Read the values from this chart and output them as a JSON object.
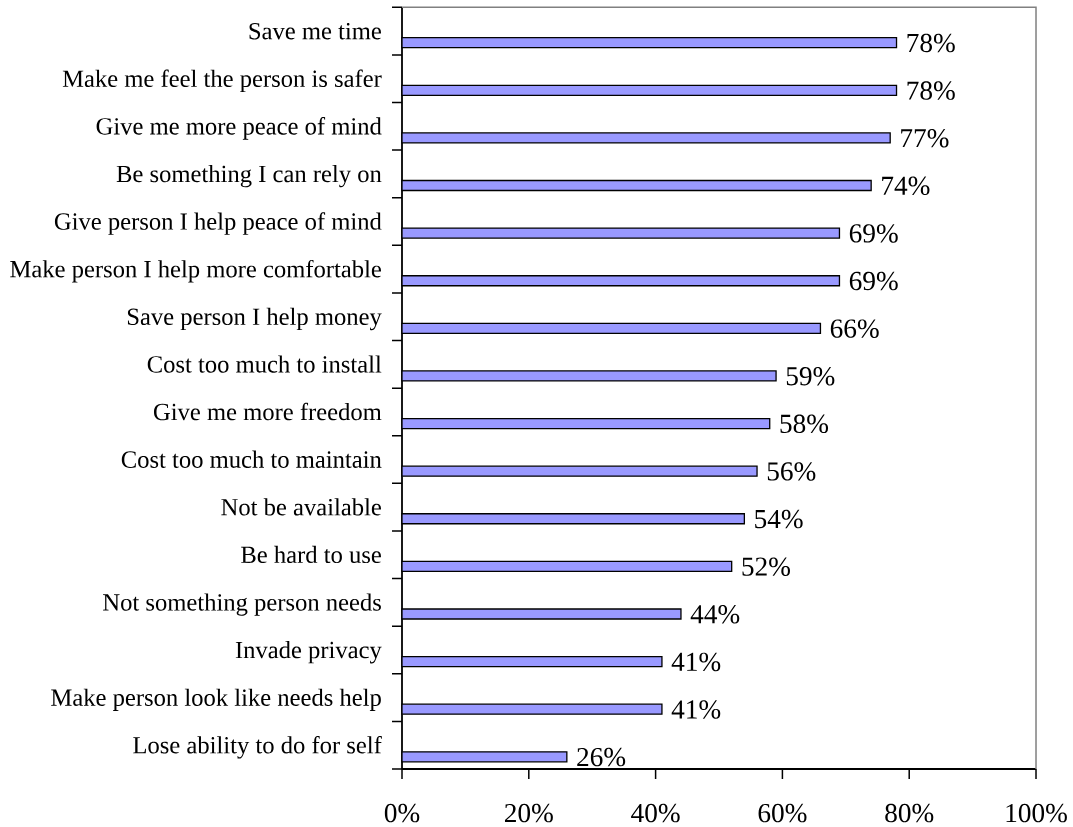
{
  "chart_data": {
    "type": "bar",
    "orientation": "horizontal",
    "categories": [
      "Save me time",
      "Make me feel the person is safer",
      "Give me more peace of mind",
      "Be something I can rely on",
      "Give person I help peace of mind",
      "Make person I help more comfortable",
      "Save person I help money",
      "Cost too much to install",
      "Give me more freedom",
      "Cost too much to maintain",
      "Not be available",
      "Be hard to use",
      "Not something person needs",
      "Invade privacy",
      "Make person look like needs help",
      "Lose ability to do for self"
    ],
    "values": [
      78,
      78,
      77,
      74,
      69,
      69,
      66,
      59,
      58,
      56,
      54,
      52,
      44,
      41,
      41,
      26
    ],
    "value_labels": [
      "78%",
      "78%",
      "77%",
      "74%",
      "69%",
      "69%",
      "66%",
      "59%",
      "58%",
      "56%",
      "54%",
      "52%",
      "44%",
      "41%",
      "41%",
      "26%"
    ],
    "color": "#9999ff",
    "xlim": [
      0,
      100
    ],
    "xticks": [
      {
        "value": 0,
        "label": "0%"
      },
      {
        "value": 20,
        "label": "20%"
      },
      {
        "value": 40,
        "label": "40%"
      },
      {
        "value": 60,
        "label": "60%"
      },
      {
        "value": 80,
        "label": "80%"
      },
      {
        "value": 100,
        "label": "100%"
      }
    ]
  }
}
